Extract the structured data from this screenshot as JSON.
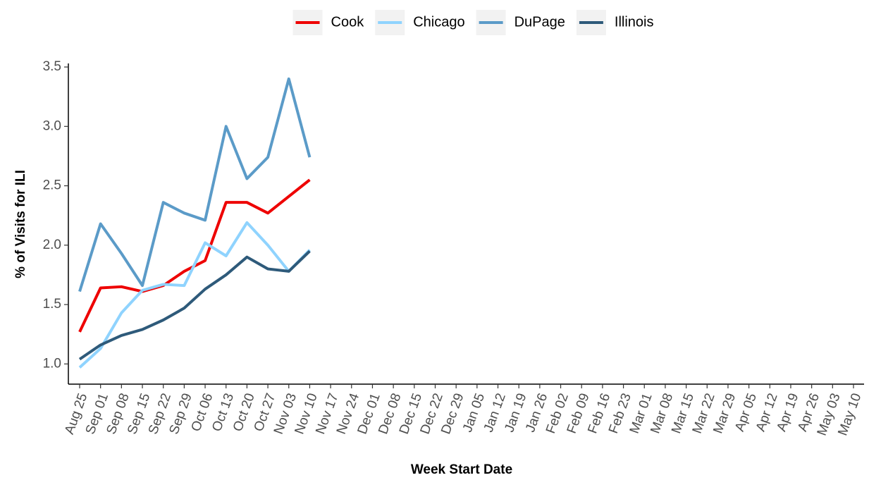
{
  "chart_data": {
    "type": "line",
    "x_label": "Week Start Date",
    "y_label": "% of Visits for ILI",
    "categories": [
      "Aug 25",
      "Sep 01",
      "Sep 08",
      "Sep 15",
      "Sep 22",
      "Sep 29",
      "Oct 06",
      "Oct 13",
      "Oct 20",
      "Oct 27",
      "Nov 03",
      "Nov 10",
      "Nov 17",
      "Nov 24",
      "Dec 01",
      "Dec 08",
      "Dec 15",
      "Dec 22",
      "Dec 29",
      "Jan 05",
      "Jan 12",
      "Jan 19",
      "Jan 26",
      "Feb 02",
      "Feb 09",
      "Feb 16",
      "Feb 23",
      "Mar 01",
      "Mar 08",
      "Mar 15",
      "Mar 22",
      "Mar 29",
      "Apr 05",
      "Apr 12",
      "Apr 19",
      "Apr 26",
      "May 03",
      "May 10"
    ],
    "series": [
      {
        "name": "Cook",
        "color": "#ee0000",
        "values": [
          1.27,
          1.64,
          1.65,
          1.61,
          1.66,
          1.78,
          1.87,
          2.36,
          2.36,
          2.27,
          2.41,
          2.55,
          null,
          null,
          null,
          null,
          null,
          null,
          null,
          null,
          null,
          null,
          null,
          null,
          null,
          null,
          null,
          null,
          null,
          null,
          null,
          null,
          null,
          null,
          null,
          null,
          null,
          null
        ]
      },
      {
        "name": "Chicago",
        "color": "#8fd3fe",
        "values": [
          0.97,
          1.13,
          1.43,
          1.62,
          1.67,
          1.66,
          2.02,
          1.91,
          2.19,
          2.0,
          1.78,
          1.96,
          null,
          null,
          null,
          null,
          null,
          null,
          null,
          null,
          null,
          null,
          null,
          null,
          null,
          null,
          null,
          null,
          null,
          null,
          null,
          null,
          null,
          null,
          null,
          null,
          null,
          null
        ]
      },
      {
        "name": "DuPage",
        "color": "#5b9bc8",
        "values": [
          1.61,
          2.18,
          1.93,
          1.66,
          2.36,
          2.27,
          2.21,
          3.0,
          2.56,
          2.74,
          3.4,
          2.74,
          null,
          null,
          null,
          null,
          null,
          null,
          null,
          null,
          null,
          null,
          null,
          null,
          null,
          null,
          null,
          null,
          null,
          null,
          null,
          null,
          null,
          null,
          null,
          null,
          null,
          null
        ]
      },
      {
        "name": "Illinois",
        "color": "#2e5a7a",
        "values": [
          1.04,
          1.16,
          1.24,
          1.29,
          1.37,
          1.47,
          1.63,
          1.75,
          1.9,
          1.8,
          1.78,
          1.95,
          null,
          null,
          null,
          null,
          null,
          null,
          null,
          null,
          null,
          null,
          null,
          null,
          null,
          null,
          null,
          null,
          null,
          null,
          null,
          null,
          null,
          null,
          null,
          null,
          null,
          null
        ]
      }
    ],
    "ylim": [
      0.83,
      3.53
    ],
    "yticks": [
      {
        "value": 1.0,
        "label": "1.0"
      },
      1.5,
      {
        "value": 2.0,
        "label": "2.0"
      },
      2.5,
      {
        "value": 3.0,
        "label": "3.0"
      },
      3.5
    ],
    "legend": "top",
    "grid": false
  }
}
